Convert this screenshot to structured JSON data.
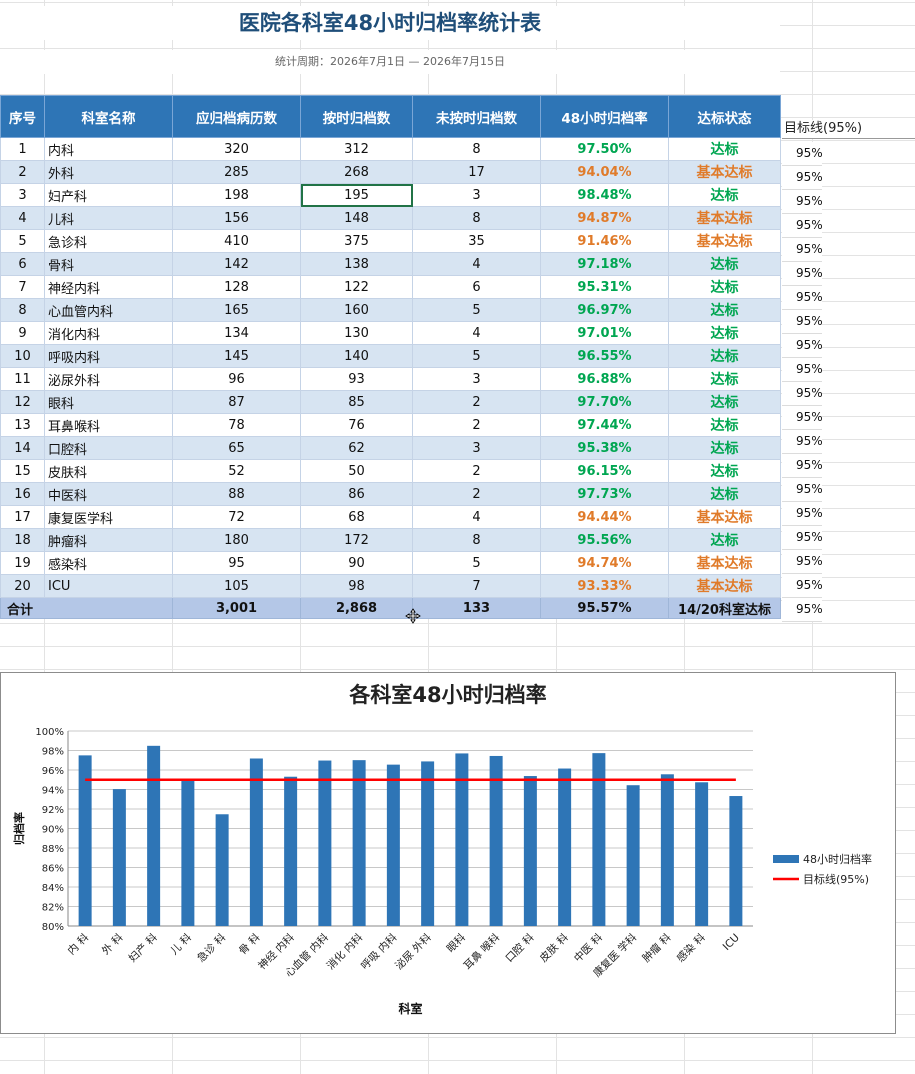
{
  "sheet": {
    "title": "医院各科室48小时归档率统计表",
    "period": "统计周期：2026年7月1日 — 2026年7月15日",
    "headers": [
      "序号",
      "科室名称",
      "应归档病历数",
      "按时归档数",
      "未按时归档数",
      "48小时归档率",
      "达标状态"
    ],
    "target_header": "目标线(95%)",
    "rows": [
      {
        "no": "1",
        "dept": "内科",
        "total": "320",
        "ontime": "312",
        "late": "8",
        "rate": "97.50%",
        "status": "达标",
        "tone": "green",
        "target": "95%"
      },
      {
        "no": "2",
        "dept": "外科",
        "total": "285",
        "ontime": "268",
        "late": "17",
        "rate": "94.04%",
        "status": "基本达标",
        "tone": "orange",
        "target": "95%"
      },
      {
        "no": "3",
        "dept": "妇产科",
        "total": "198",
        "ontime": "195",
        "late": "3",
        "rate": "98.48%",
        "status": "达标",
        "tone": "green",
        "target": "95%"
      },
      {
        "no": "4",
        "dept": "儿科",
        "total": "156",
        "ontime": "148",
        "late": "8",
        "rate": "94.87%",
        "status": "基本达标",
        "tone": "orange",
        "target": "95%"
      },
      {
        "no": "5",
        "dept": "急诊科",
        "total": "410",
        "ontime": "375",
        "late": "35",
        "rate": "91.46%",
        "status": "基本达标",
        "tone": "orange",
        "target": "95%"
      },
      {
        "no": "6",
        "dept": "骨科",
        "total": "142",
        "ontime": "138",
        "late": "4",
        "rate": "97.18%",
        "status": "达标",
        "tone": "green",
        "target": "95%"
      },
      {
        "no": "7",
        "dept": "神经内科",
        "total": "128",
        "ontime": "122",
        "late": "6",
        "rate": "95.31%",
        "status": "达标",
        "tone": "green",
        "target": "95%"
      },
      {
        "no": "8",
        "dept": "心血管内科",
        "total": "165",
        "ontime": "160",
        "late": "5",
        "rate": "96.97%",
        "status": "达标",
        "tone": "green",
        "target": "95%"
      },
      {
        "no": "9",
        "dept": "消化内科",
        "total": "134",
        "ontime": "130",
        "late": "4",
        "rate": "97.01%",
        "status": "达标",
        "tone": "green",
        "target": "95%"
      },
      {
        "no": "10",
        "dept": "呼吸内科",
        "total": "145",
        "ontime": "140",
        "late": "5",
        "rate": "96.55%",
        "status": "达标",
        "tone": "green",
        "target": "95%"
      },
      {
        "no": "11",
        "dept": "泌尿外科",
        "total": "96",
        "ontime": "93",
        "late": "3",
        "rate": "96.88%",
        "status": "达标",
        "tone": "green",
        "target": "95%"
      },
      {
        "no": "12",
        "dept": "眼科",
        "total": "87",
        "ontime": "85",
        "late": "2",
        "rate": "97.70%",
        "status": "达标",
        "tone": "green",
        "target": "95%"
      },
      {
        "no": "13",
        "dept": "耳鼻喉科",
        "total": "78",
        "ontime": "76",
        "late": "2",
        "rate": "97.44%",
        "status": "达标",
        "tone": "green",
        "target": "95%"
      },
      {
        "no": "14",
        "dept": "口腔科",
        "total": "65",
        "ontime": "62",
        "late": "3",
        "rate": "95.38%",
        "status": "达标",
        "tone": "green",
        "target": "95%"
      },
      {
        "no": "15",
        "dept": "皮肤科",
        "total": "52",
        "ontime": "50",
        "late": "2",
        "rate": "96.15%",
        "status": "达标",
        "tone": "green",
        "target": "95%"
      },
      {
        "no": "16",
        "dept": "中医科",
        "total": "88",
        "ontime": "86",
        "late": "2",
        "rate": "97.73%",
        "status": "达标",
        "tone": "green",
        "target": "95%"
      },
      {
        "no": "17",
        "dept": "康复医学科",
        "total": "72",
        "ontime": "68",
        "late": "4",
        "rate": "94.44%",
        "status": "基本达标",
        "tone": "orange",
        "target": "95%"
      },
      {
        "no": "18",
        "dept": "肿瘤科",
        "total": "180",
        "ontime": "172",
        "late": "8",
        "rate": "95.56%",
        "status": "达标",
        "tone": "green",
        "target": "95%"
      },
      {
        "no": "19",
        "dept": "感染科",
        "total": "95",
        "ontime": "90",
        "late": "5",
        "rate": "94.74%",
        "status": "基本达标",
        "tone": "orange",
        "target": "95%"
      },
      {
        "no": "20",
        "dept": "ICU",
        "total": "105",
        "ontime": "98",
        "late": "7",
        "rate": "93.33%",
        "status": "基本达标",
        "tone": "orange",
        "target": "95%"
      }
    ],
    "totals": {
      "label": "合计",
      "total": "3,001",
      "ontime": "2,868",
      "late": "133",
      "rate": "95.57%",
      "status": "14/20科室达标"
    },
    "selected_cell": {
      "row": 2,
      "col": 3
    }
  },
  "chart_data": {
    "type": "bar",
    "title": "各科室48小时归档率",
    "xlabel": "科室",
    "ylabel": "归档率",
    "categories": [
      "内科",
      "外科",
      "妇产科",
      "儿科",
      "急诊科",
      "骨科",
      "神经内科",
      "心血管内科",
      "消化内科",
      "呼吸内科",
      "泌尿外科",
      "眼科",
      "耳鼻喉科",
      "口腔科",
      "皮肤科",
      "中医科",
      "康复医学科",
      "肿瘤科",
      "感染科",
      "ICU"
    ],
    "category_labels": [
      "内 科",
      "外 科",
      "妇产 科",
      "儿 科",
      "急诊 科",
      "骨 科",
      "神经 内科",
      "心血管 内科",
      "消化 内科",
      "呼吸 内科",
      "泌尿 外科",
      "眼科",
      "耳鼻 喉科",
      "口腔 科",
      "皮肤 科",
      "中医 科",
      "康复医 学科",
      "肿瘤 科",
      "感染 科",
      "ICU"
    ],
    "series": [
      {
        "name": "48小时归档率",
        "type": "bar",
        "color": "#2e75b6",
        "values": [
          97.5,
          94.04,
          98.48,
          94.87,
          91.46,
          97.18,
          95.31,
          96.97,
          97.01,
          96.55,
          96.88,
          97.7,
          97.44,
          95.38,
          96.15,
          97.73,
          94.44,
          95.56,
          94.74,
          93.33
        ]
      },
      {
        "name": "目标线(95%)",
        "type": "line",
        "color": "#ff0000",
        "values": [
          95,
          95,
          95,
          95,
          95,
          95,
          95,
          95,
          95,
          95,
          95,
          95,
          95,
          95,
          95,
          95,
          95,
          95,
          95,
          95
        ]
      }
    ],
    "ylim": [
      80,
      100
    ],
    "yticks": [
      80,
      82,
      84,
      86,
      88,
      90,
      92,
      94,
      96,
      98,
      100
    ],
    "ytick_labels": [
      "80%",
      "82%",
      "84%",
      "86%",
      "88%",
      "90%",
      "92%",
      "94%",
      "96%",
      "98%",
      "100%"
    ],
    "grid": true,
    "legend": "right"
  }
}
